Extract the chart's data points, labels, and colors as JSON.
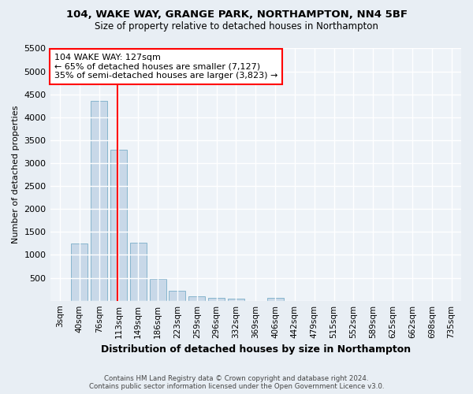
{
  "title_line1": "104, WAKE WAY, GRANGE PARK, NORTHAMPTON, NN4 5BF",
  "title_line2": "Size of property relative to detached houses in Northampton",
  "xlabel": "Distribution of detached houses by size in Northampton",
  "ylabel": "Number of detached properties",
  "footer_line1": "Contains HM Land Registry data © Crown copyright and database right 2024.",
  "footer_line2": "Contains public sector information licensed under the Open Government Licence v3.0.",
  "bin_labels": [
    "3sqm",
    "40sqm",
    "76sqm",
    "113sqm",
    "149sqm",
    "186sqm",
    "223sqm",
    "259sqm",
    "296sqm",
    "332sqm",
    "369sqm",
    "406sqm",
    "442sqm",
    "479sqm",
    "515sqm",
    "552sqm",
    "589sqm",
    "625sqm",
    "662sqm",
    "698sqm",
    "735sqm"
  ],
  "bar_values": [
    0,
    1250,
    4350,
    3300,
    1270,
    480,
    220,
    90,
    55,
    40,
    0,
    60,
    0,
    0,
    0,
    0,
    0,
    0,
    0,
    0,
    0
  ],
  "bar_color": "#c8d8e8",
  "bar_edge_color": "#7aaec8",
  "ref_line_bin": 3,
  "ref_line_color": "red",
  "annotation_text": "104 WAKE WAY: 127sqm\n← 65% of detached houses are smaller (7,127)\n35% of semi-detached houses are larger (3,823) →",
  "annotation_box_color": "white",
  "annotation_box_edge": "red",
  "ylim": [
    0,
    5500
  ],
  "yticks": [
    0,
    500,
    1000,
    1500,
    2000,
    2500,
    3000,
    3500,
    4000,
    4500,
    5000,
    5500
  ],
  "bg_color": "#e8eef4",
  "plot_bg_color": "#eef3f8",
  "grid_color": "white",
  "figsize": [
    6.0,
    5.0
  ],
  "dpi": 100
}
